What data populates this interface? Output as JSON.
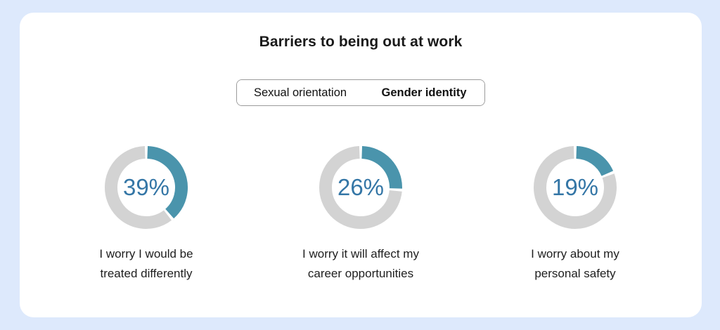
{
  "page": {
    "background_color": "#dde9fc",
    "card_background_color": "#ffffff"
  },
  "header": {
    "title": "Barriers to being out at work"
  },
  "tabs": {
    "items": [
      {
        "label": "Sexual orientation",
        "selected": false
      },
      {
        "label": "Gender identity",
        "selected": true
      }
    ],
    "selected_text_color": "#3f8d26",
    "unselected_background_color": "#d5d5d5"
  },
  "chart_data": {
    "type": "pie",
    "subtype": "donut-multiple",
    "title": "Barriers to being out at work",
    "active_tab": "Gender identity",
    "unit": "%",
    "arc_start": "top",
    "direction": "clockwise",
    "series": [
      {
        "value": 39,
        "display": "39%",
        "caption_line1": "I worry I would be",
        "caption_line2": "treated differently"
      },
      {
        "value": 26,
        "display": "26%",
        "caption_line1": "I worry it will affect my",
        "caption_line2": "career opportunities"
      },
      {
        "value": 19,
        "display": "19%",
        "caption_line1": "I worry about my",
        "caption_line2": "personal safety"
      }
    ],
    "colors": {
      "value_arc": "#4a94ac",
      "remainder_arc": "#d3d3d3",
      "percent_text": "#3476a6"
    }
  }
}
